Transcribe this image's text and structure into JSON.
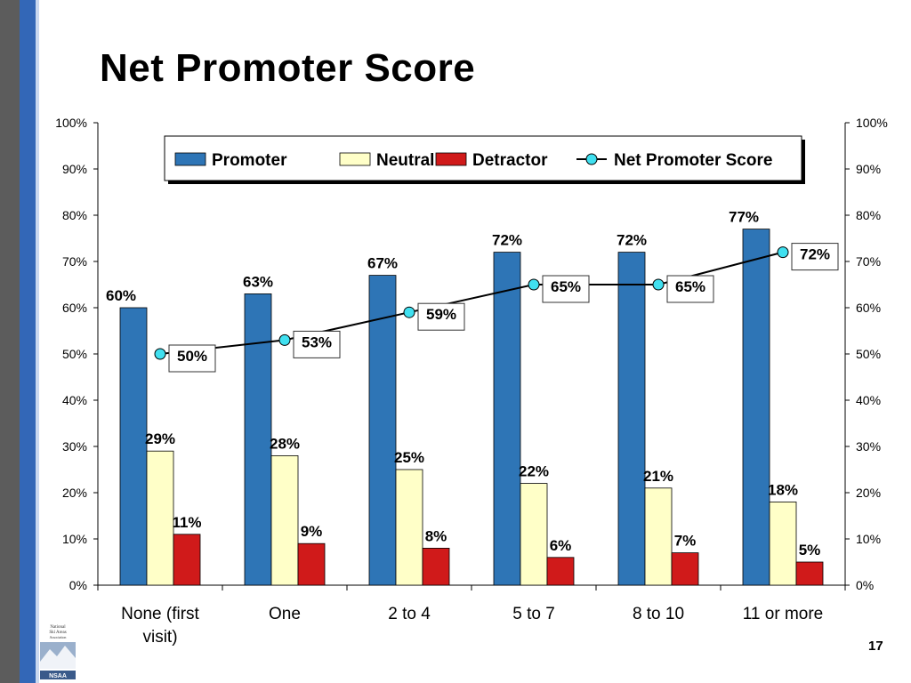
{
  "slide": {
    "title": "Net Promoter Score",
    "page_number": "17",
    "logo_text": [
      "National",
      "Ski Areas",
      "Association",
      "NSAA"
    ]
  },
  "colors": {
    "promoter": "#2e75b6",
    "neutral": "#ffffc8",
    "detractor": "#d01a1a",
    "nps_line": "#000000",
    "nps_marker": "#40e0f0",
    "left_bar_dark": "#5c5c5c",
    "left_bar_blue": "#3367b7"
  },
  "chart_data": {
    "type": "bar",
    "categories": [
      "None (first visit)",
      "One",
      "2 to 4",
      "5 to 7",
      "8 to 10",
      "11 or more"
    ],
    "category_lines": [
      [
        "None (first",
        "visit)"
      ],
      [
        "One"
      ],
      [
        "2 to 4"
      ],
      [
        "5 to 7"
      ],
      [
        "8 to 10"
      ],
      [
        "11 or more"
      ]
    ],
    "series": [
      {
        "name": "Promoter",
        "type": "bar",
        "values": [
          60,
          63,
          67,
          72,
          72,
          77
        ],
        "labels": [
          "60%",
          "63%",
          "67%",
          "72%",
          "72%",
          "77%"
        ]
      },
      {
        "name": "Neutral",
        "type": "bar",
        "values": [
          29,
          28,
          25,
          22,
          21,
          18
        ],
        "labels": [
          "29%",
          "28%",
          "25%",
          "22%",
          "21%",
          "18%"
        ]
      },
      {
        "name": "Detractor",
        "type": "bar",
        "values": [
          11,
          9,
          8,
          6,
          7,
          5
        ],
        "labels": [
          "11%",
          "9%",
          "8%",
          "6%",
          "7%",
          "5%"
        ]
      },
      {
        "name": "Net Promoter Score",
        "type": "line",
        "values": [
          50,
          53,
          59,
          65,
          65,
          72
        ],
        "labels": [
          "50%",
          "53%",
          "59%",
          "65%",
          "65%",
          "72%"
        ]
      }
    ],
    "y_ticks": [
      "0%",
      "10%",
      "20%",
      "30%",
      "40%",
      "50%",
      "60%",
      "70%",
      "80%",
      "90%",
      "100%"
    ],
    "ylim": [
      0,
      100
    ],
    "secondary_ylim": [
      0,
      100
    ],
    "grid": false,
    "legend": {
      "position": "top-center",
      "items": [
        "Promoter",
        "Neutral",
        "Detractor",
        "Net Promoter Score"
      ]
    }
  }
}
